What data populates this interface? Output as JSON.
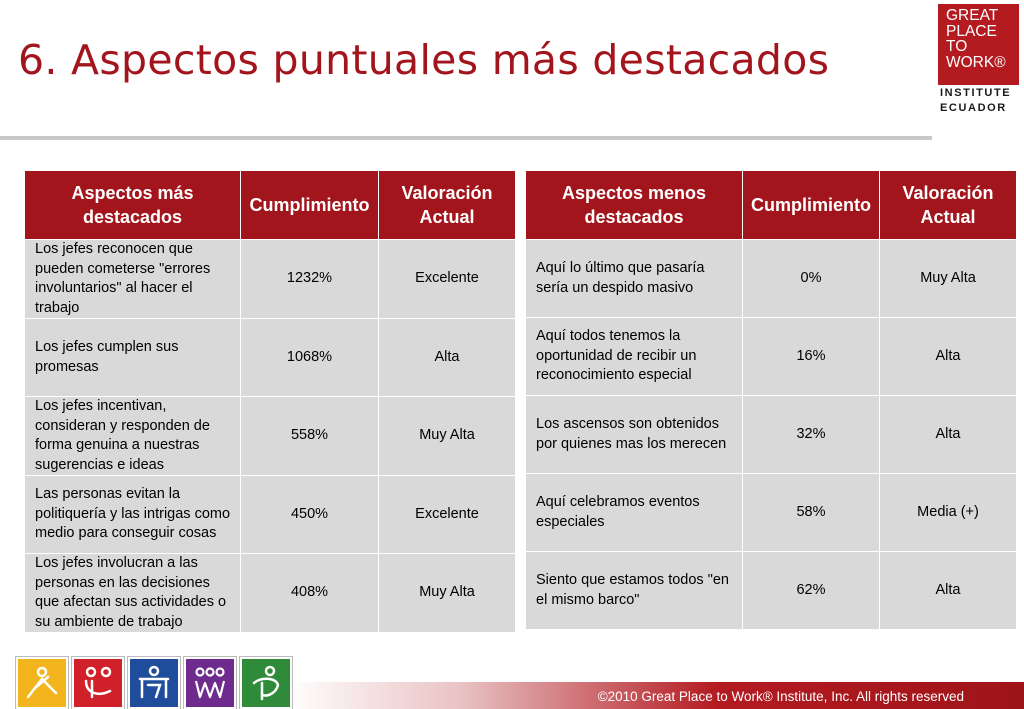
{
  "slide": {
    "title": "6. Aspectos puntuales más destacados",
    "footer": "©2010 Great Place to Work® Institute, Inc. All rights reserved"
  },
  "logo": {
    "lines": [
      "GREAT",
      "PLACE",
      "TO",
      "WORK®"
    ],
    "sub_lines": [
      "INSTITUTE",
      "ECUADOR"
    ]
  },
  "colors": {
    "accent": "#a3151c",
    "cell": "#d9d9d9"
  },
  "left_table": {
    "headers": [
      "Aspectos más destacados",
      "Cumplimiento",
      "Valoración Actual"
    ],
    "rows": [
      {
        "aspect": "Los jefes reconocen que pueden cometerse \"errores involuntarios\" al hacer el trabajo",
        "cumplimiento": "1232%",
        "valoracion": "Excelente"
      },
      {
        "aspect": "Los jefes cumplen sus promesas",
        "cumplimiento": "1068%",
        "valoracion": "Alta"
      },
      {
        "aspect": "Los jefes incentivan, consideran y responden de forma genuina a nuestras sugerencias e ideas",
        "cumplimiento": "558%",
        "valoracion": "Muy Alta"
      },
      {
        "aspect": "Las personas evitan la politiquería y las intrigas como medio para conseguir cosas",
        "cumplimiento": "450%",
        "valoracion": "Excelente"
      },
      {
        "aspect": "Los jefes involucran a las personas en las decisiones que afectan sus actividades o su ambiente de trabajo",
        "cumplimiento": "408%",
        "valoracion": "Muy Alta"
      }
    ]
  },
  "right_table": {
    "headers": [
      "Aspectos menos destacados",
      "Cumplimiento",
      "Valoración Actual"
    ],
    "rows": [
      {
        "aspect": "Aquí lo último que pasaría sería un despido masivo",
        "cumplimiento": "0%",
        "valoracion": "Muy Alta"
      },
      {
        "aspect": "Aquí todos tenemos la oportunidad de recibir un reconocimiento especial",
        "cumplimiento": "16%",
        "valoracion": "Alta"
      },
      {
        "aspect": "Los ascensos son obtenidos por quienes mas los merecen",
        "cumplimiento": "32%",
        "valoracion": "Alta"
      },
      {
        "aspect": "Aquí celebramos eventos especiales",
        "cumplimiento": "58%",
        "valoracion": "Media (+)"
      },
      {
        "aspect": "Siento que estamos todos \"en el mismo barco\"",
        "cumplimiento": "62%",
        "valoracion": "Alta"
      }
    ]
  },
  "icon_squares": [
    {
      "icon": "credibility-icon",
      "color": "#f2b51d"
    },
    {
      "icon": "respect-icon",
      "color": "#d0202a"
    },
    {
      "icon": "fairness-icon",
      "color": "#1f4d9c"
    },
    {
      "icon": "pride-icon",
      "color": "#6e2a8c"
    },
    {
      "icon": "camaraderie-icon",
      "color": "#2f8a3a"
    }
  ]
}
